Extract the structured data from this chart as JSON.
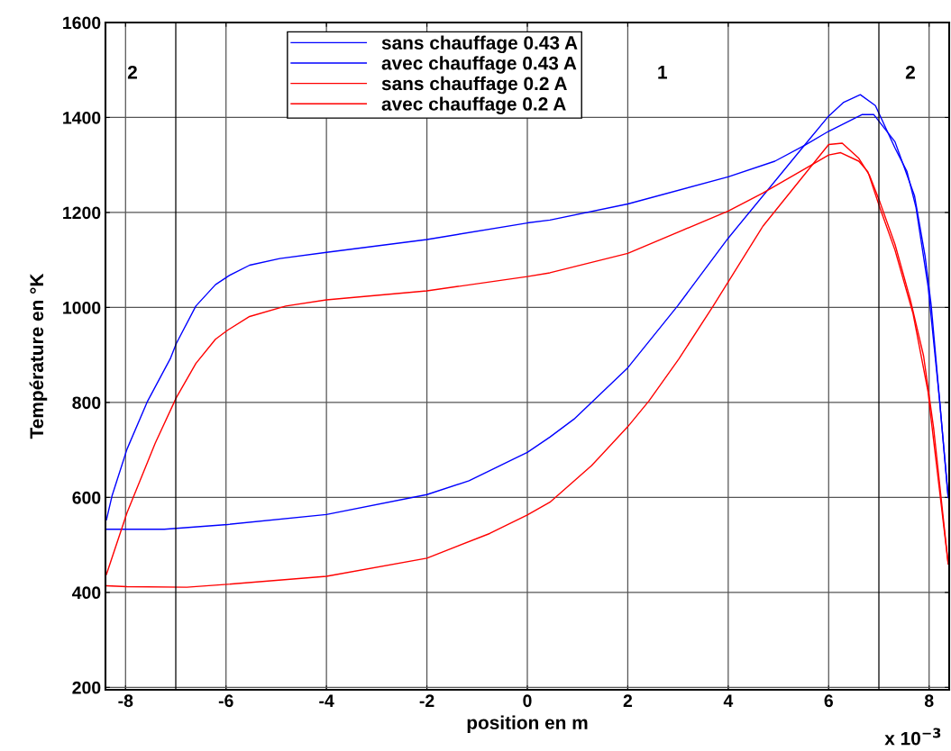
{
  "chart_data": {
    "type": "line",
    "xlabel": "position en m",
    "ylabel": "Température en °K",
    "xlim": [
      -8.4,
      8.4
    ],
    "xticks": [
      -8,
      -6,
      -4,
      -2,
      0,
      2,
      4,
      6,
      8
    ],
    "ylim": [
      195,
      1600
    ],
    "yticks": [
      200,
      400,
      600,
      800,
      1000,
      1200,
      1400,
      1600
    ],
    "grid": true,
    "legend": "top",
    "line_style": "solid",
    "marker": "none",
    "ref_lines": [
      {
        "axis": "x",
        "value": -7,
        "color": "#000000"
      },
      {
        "axis": "x",
        "value": 7,
        "color": "#000000"
      }
    ],
    "annotations": [
      "2",
      "1",
      "2",
      "x 10$^{−3}$"
    ],
    "series": [
      {
        "name": "sans chauffage 0.43 A",
        "color": "#0000ff",
        "x": [
          -8.38,
          -7.23,
          -5.97,
          -4.0,
          -2.0,
          -1.16,
          0,
          0.45,
          0.93,
          2.0,
          2.99,
          4.0,
          5.53,
          6.0,
          6.3,
          6.63,
          6.93,
          7.32,
          7.56,
          7.74,
          7.98,
          8.21,
          8.38
        ],
        "values": [
          533,
          533,
          543,
          564,
          606,
          635,
          695,
          727,
          765,
          873,
          1003,
          1146,
          1343,
          1403,
          1432,
          1448,
          1425,
          1336,
          1286,
          1210,
          1044,
          803,
          600
        ]
      },
      {
        "name": "avec chauffage 0.43 A",
        "color": "#0000ff",
        "x": [
          -8.38,
          -8.27,
          -7.97,
          -7.56,
          -7.11,
          -6.99,
          -6.6,
          -6.21,
          -5.94,
          -5.53,
          -4.93,
          -4.0,
          -2.0,
          0,
          0.45,
          2.0,
          4.0,
          4.93,
          5.53,
          6.0,
          6.66,
          6.9,
          7.32,
          7.71,
          7.92,
          8.04,
          8.21,
          8.38
        ],
        "values": [
          553,
          603,
          702,
          803,
          892,
          924,
          1003,
          1048,
          1067,
          1089,
          1103,
          1116,
          1143,
          1178,
          1184,
          1218,
          1275,
          1308,
          1342,
          1371,
          1406,
          1406,
          1349,
          1235,
          1108,
          1006,
          803,
          600
        ]
      },
      {
        "name": "sans chauffage 0.2 A",
        "color": "#ff0000",
        "x": [
          -8.38,
          -7.97,
          -6.78,
          -5.97,
          -4.0,
          -2.0,
          -0.75,
          0,
          0.45,
          1.28,
          2.0,
          2.42,
          3.02,
          3.7,
          4.69,
          6.0,
          6.27,
          6.6,
          6.81,
          7.02,
          7.32,
          7.62,
          7.89,
          8.09,
          8.38
        ],
        "values": [
          414,
          412,
          411,
          417,
          434,
          472,
          524,
          563,
          590,
          667,
          749,
          803,
          892,
          1003,
          1171,
          1343,
          1346,
          1314,
          1279,
          1222,
          1133,
          1019,
          898,
          746,
          460
        ]
      },
      {
        "name": "avec chauffage 0.2 A",
        "color": "#ff0000",
        "x": [
          -8.38,
          -7.97,
          -7.41,
          -6.99,
          -6.6,
          -6.21,
          -5.97,
          -5.53,
          -4.81,
          -4.0,
          -2.0,
          0,
          0.45,
          2.0,
          4.0,
          4.69,
          5.53,
          6.0,
          6.24,
          6.6,
          6.78,
          7.02,
          7.32,
          7.68,
          7.98,
          8.04,
          8.38
        ],
        "values": [
          438,
          568,
          714,
          810,
          882,
          933,
          952,
          981,
          1003,
          1016,
          1035,
          1065,
          1073,
          1114,
          1203,
          1241,
          1292,
          1321,
          1326,
          1308,
          1286,
          1210,
          1121,
          987,
          822,
          765,
          460
        ]
      }
    ]
  }
}
